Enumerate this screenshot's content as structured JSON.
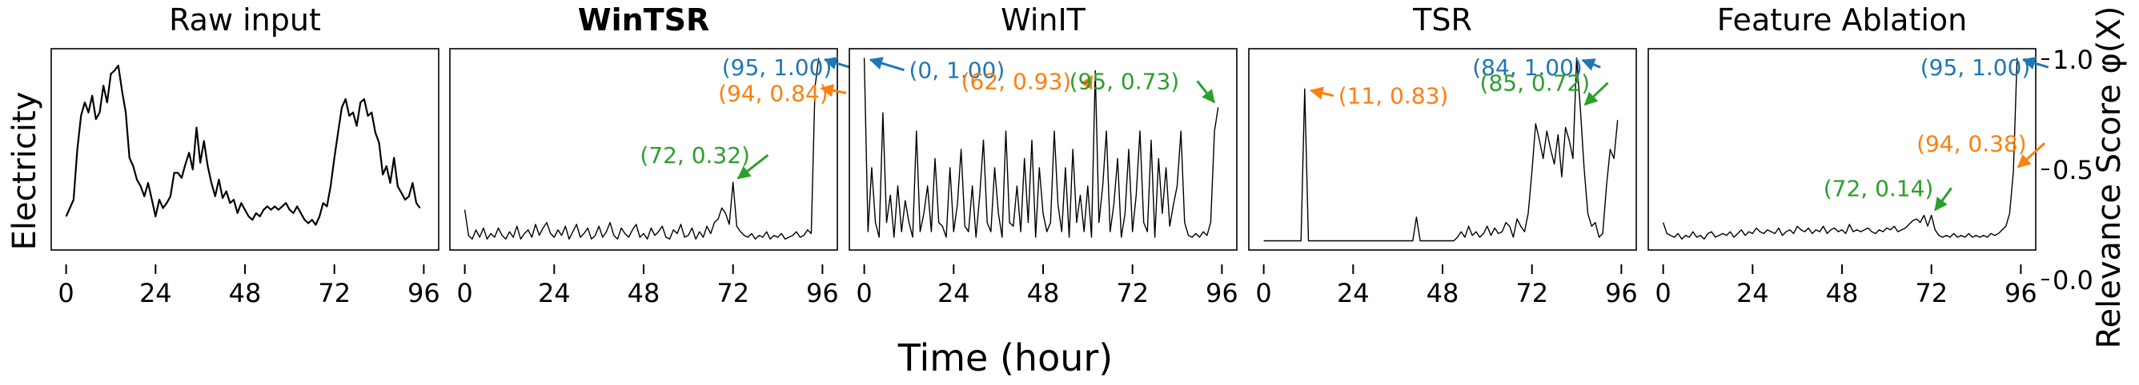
{
  "figure": {
    "shared_xlabel": "Time (hour)",
    "shared_ylabel": "Electricity",
    "right_ylabel": "Relevance Score φ(X)",
    "x_ticks": [
      "0",
      "24",
      "48",
      "72",
      "96"
    ],
    "right_y_ticks": [
      "0.0",
      "0.5",
      "1.0"
    ]
  },
  "colors": {
    "blue": "#1f77b4",
    "orange": "#ff7f0e",
    "green": "#2ca02c",
    "line": "#000000"
  },
  "chart_data": [
    {
      "type": "line",
      "title": "Raw input",
      "title_bold": false,
      "xlim": [
        -4,
        100
      ],
      "x_ticks": [
        0,
        24,
        48,
        72,
        96
      ],
      "ylim": [
        -0.1,
        1.1
      ],
      "annotations": [],
      "series": [
        {
          "values": [
            0.1,
            0.15,
            0.2,
            0.5,
            0.7,
            0.78,
            0.72,
            0.82,
            0.68,
            0.72,
            0.88,
            0.78,
            0.95,
            0.97,
            1.0,
            0.85,
            0.72,
            0.45,
            0.4,
            0.32,
            0.28,
            0.22,
            0.3,
            0.2,
            0.1,
            0.2,
            0.15,
            0.18,
            0.22,
            0.36,
            0.36,
            0.33,
            0.41,
            0.48,
            0.38,
            0.63,
            0.42,
            0.55,
            0.4,
            0.3,
            0.22,
            0.32,
            0.21,
            0.25,
            0.18,
            0.2,
            0.12,
            0.18,
            0.14,
            0.1,
            0.08,
            0.12,
            0.1,
            0.14,
            0.16,
            0.14,
            0.16,
            0.14,
            0.16,
            0.18,
            0.14,
            0.12,
            0.16,
            0.12,
            0.08,
            0.06,
            0.08,
            0.05,
            0.1,
            0.18,
            0.16,
            0.28,
            0.45,
            0.6,
            0.75,
            0.8,
            0.7,
            0.72,
            0.64,
            0.78,
            0.8,
            0.7,
            0.72,
            0.6,
            0.54,
            0.35,
            0.4,
            0.3,
            0.45,
            0.28,
            0.24,
            0.2,
            0.22,
            0.3,
            0.18,
            0.15
          ]
        }
      ]
    },
    {
      "type": "line",
      "title": "WinTSR",
      "title_bold": true,
      "xlim": [
        -4,
        100
      ],
      "x_ticks": [
        0,
        24,
        48,
        72,
        96
      ],
      "ylim": [
        -0.05,
        1.05
      ],
      "annotations": [
        {
          "text": "(95, 1.00)",
          "color": "blue",
          "x": 95,
          "y": 1.0,
          "text_x": 69,
          "text_y": 0.905
        },
        {
          "text": "(94, 0.84)",
          "color": "orange",
          "x": 94,
          "y": 0.84,
          "text_x": 68,
          "text_y": 0.765
        },
        {
          "text": "(72, 0.32)",
          "color": "green",
          "x": 72,
          "y": 0.32,
          "text_x": 47,
          "text_y": 0.425
        }
      ],
      "series": [
        {
          "values": [
            0.17,
            0.03,
            0.01,
            0.06,
            0.02,
            0.07,
            0.01,
            0.04,
            0.02,
            0.07,
            0.03,
            0.01,
            0.05,
            0.02,
            0.08,
            0.01,
            0.04,
            0.06,
            0.02,
            0.09,
            0.03,
            0.07,
            0.1,
            0.04,
            0.02,
            0.06,
            0.03,
            0.08,
            0.01,
            0.05,
            0.09,
            0.02,
            0.04,
            0.07,
            0.01,
            0.03,
            0.08,
            0.02,
            0.05,
            0.1,
            0.03,
            0.01,
            0.07,
            0.04,
            0.02,
            0.06,
            0.09,
            0.02,
            0.04,
            0.01,
            0.07,
            0.03,
            0.05,
            0.08,
            0.02,
            0.01,
            0.06,
            0.04,
            0.09,
            0.02,
            0.03,
            0.07,
            0.01,
            0.05,
            0.02,
            0.08,
            0.04,
            0.1,
            0.12,
            0.18,
            0.15,
            0.09,
            0.32,
            0.08,
            0.05,
            0.03,
            0.02,
            0.04,
            0.01,
            0.03,
            0.02,
            0.05,
            0.01,
            0.03,
            0.02,
            0.04,
            0.01,
            0.02,
            0.03,
            0.05,
            0.02,
            0.03,
            0.06,
            0.04,
            0.84,
            1.0
          ]
        }
      ]
    },
    {
      "type": "line",
      "title": "WinIT",
      "title_bold": false,
      "xlim": [
        -4,
        100
      ],
      "x_ticks": [
        0,
        24,
        48,
        72,
        96
      ],
      "ylim": [
        -0.05,
        1.05
      ],
      "annotations": [
        {
          "text": "(0, 1.00)",
          "color": "blue",
          "x": 0,
          "y": 1.0,
          "text_x": 12,
          "text_y": 0.89
        },
        {
          "text": "(62, 0.93)",
          "color": "orange",
          "x": 62,
          "y": 0.93,
          "text_x": 26,
          "text_y": 0.83
        },
        {
          "text": "(95, 0.73)",
          "color": "green",
          "x": 95,
          "y": 0.73,
          "text_x": 55,
          "text_y": 0.83
        }
      ],
      "series": [
        {
          "values": [
            1.0,
            0.05,
            0.4,
            0.1,
            0.02,
            0.7,
            0.1,
            0.25,
            0.02,
            0.3,
            0.05,
            0.22,
            0.1,
            0.02,
            0.6,
            0.05,
            0.15,
            0.3,
            0.05,
            0.45,
            0.1,
            0.08,
            0.02,
            0.4,
            0.05,
            0.2,
            0.5,
            0.08,
            0.05,
            0.3,
            0.02,
            0.25,
            0.55,
            0.1,
            0.05,
            0.4,
            0.15,
            0.02,
            0.6,
            0.1,
            0.08,
            0.3,
            0.05,
            0.45,
            0.1,
            0.55,
            0.02,
            0.4,
            0.15,
            0.05,
            0.1,
            0.6,
            0.2,
            0.05,
            0.4,
            0.02,
            0.5,
            0.1,
            0.25,
            0.05,
            0.3,
            0.02,
            0.93,
            0.1,
            0.3,
            0.6,
            0.05,
            0.2,
            0.45,
            0.02,
            0.15,
            0.5,
            0.05,
            0.25,
            0.6,
            0.1,
            0.05,
            0.55,
            0.02,
            0.45,
            0.15,
            0.4,
            0.08,
            0.2,
            0.3,
            0.6,
            0.1,
            0.03,
            0.02,
            0.04,
            0.02,
            0.05,
            0.03,
            0.1,
            0.6,
            0.73
          ]
        }
      ]
    },
    {
      "type": "line",
      "title": "TSR",
      "title_bold": false,
      "xlim": [
        -4,
        100
      ],
      "x_ticks": [
        0,
        24,
        48,
        72,
        96
      ],
      "ylim": [
        -0.05,
        1.05
      ],
      "annotations": [
        {
          "text": "(84, 1.00)",
          "color": "blue",
          "x": 84,
          "y": 1.0,
          "text_x": 56,
          "text_y": 0.905
        },
        {
          "text": "(11, 0.83)",
          "color": "orange",
          "x": 11,
          "y": 0.83,
          "text_x": 20,
          "text_y": 0.75
        },
        {
          "text": "(85, 0.72)",
          "color": "green",
          "x": 85,
          "y": 0.72,
          "text_x": 58,
          "text_y": 0.82
        }
      ],
      "series": [
        {
          "values": [
            0,
            0,
            0,
            0,
            0,
            0,
            0,
            0,
            0,
            0,
            0,
            0.83,
            0,
            0,
            0,
            0,
            0,
            0,
            0,
            0,
            0,
            0,
            0,
            0,
            0,
            0,
            0,
            0,
            0,
            0,
            0,
            0,
            0,
            0,
            0,
            0,
            0,
            0,
            0,
            0,
            0,
            0.13,
            0,
            0,
            0,
            0,
            0,
            0,
            0,
            0,
            0,
            0,
            0.02,
            0.05,
            0.02,
            0.08,
            0.03,
            0.05,
            0.02,
            0.04,
            0.08,
            0.03,
            0.07,
            0.04,
            0.05,
            0.1,
            0.08,
            0.02,
            0.12,
            0.08,
            0.05,
            0.15,
            0.38,
            0.64,
            0.55,
            0.45,
            0.6,
            0.5,
            0.42,
            0.58,
            0.35,
            0.62,
            0.55,
            0.45,
            1.0,
            0.72,
            0.4,
            0.15,
            0.08,
            0.1,
            0.02,
            0.04,
            0.3,
            0.5,
            0.45,
            0.66
          ]
        }
      ]
    },
    {
      "type": "line",
      "title": "Feature Ablation",
      "title_bold": false,
      "xlim": [
        -4,
        100
      ],
      "x_ticks": [
        0,
        24,
        48,
        72,
        96
      ],
      "ylim": [
        -0.05,
        1.05
      ],
      "annotations": [
        {
          "text": "(95, 1.00)",
          "color": "blue",
          "x": 95,
          "y": 1.0,
          "text_x": 69,
          "text_y": 0.905
        },
        {
          "text": "(94, 0.38)",
          "color": "orange",
          "x": 94,
          "y": 0.38,
          "text_x": 68,
          "text_y": 0.49
        },
        {
          "text": "(72, 0.14)",
          "color": "green",
          "x": 72,
          "y": 0.14,
          "text_x": 43,
          "text_y": 0.245
        }
      ],
      "series": [
        {
          "values": [
            0.1,
            0.04,
            0.03,
            0.02,
            0.04,
            0.01,
            0.03,
            0.02,
            0.05,
            0.02,
            0.03,
            0.01,
            0.04,
            0.05,
            0.02,
            0.03,
            0.04,
            0.03,
            0.05,
            0.02,
            0.04,
            0.06,
            0.03,
            0.05,
            0.04,
            0.07,
            0.05,
            0.04,
            0.06,
            0.05,
            0.04,
            0.07,
            0.03,
            0.05,
            0.06,
            0.04,
            0.08,
            0.06,
            0.05,
            0.07,
            0.04,
            0.06,
            0.05,
            0.08,
            0.04,
            0.06,
            0.07,
            0.05,
            0.06,
            0.04,
            0.09,
            0.05,
            0.06,
            0.05,
            0.06,
            0.07,
            0.05,
            0.04,
            0.06,
            0.05,
            0.07,
            0.06,
            0.08,
            0.05,
            0.06,
            0.07,
            0.09,
            0.11,
            0.12,
            0.1,
            0.14,
            0.08,
            0.14,
            0.06,
            0.03,
            0.02,
            0.03,
            0.02,
            0.04,
            0.02,
            0.03,
            0.02,
            0.04,
            0.02,
            0.03,
            0.02,
            0.03,
            0.02,
            0.04,
            0.03,
            0.04,
            0.06,
            0.08,
            0.15,
            0.38,
            1.0
          ]
        }
      ]
    }
  ]
}
